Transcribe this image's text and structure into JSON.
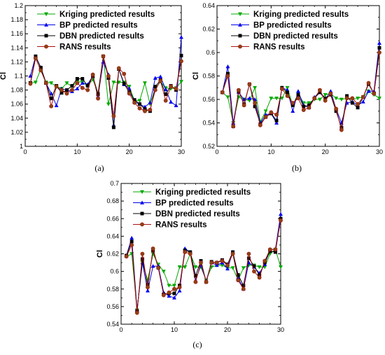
{
  "figure": {
    "colors": {
      "kriging": "#00aa00",
      "bp": "#0000ee",
      "dbn": "#000000",
      "rans": "#aa1111",
      "rans_marker_fill": "#8b4513"
    }
  },
  "chart_data": [
    {
      "type": "line",
      "panel": "(a)",
      "ylabel": "Cl",
      "xlabel": "",
      "xlim": [
        0,
        30
      ],
      "ylim": [
        1.0,
        1.2
      ],
      "xticks": [
        0,
        10,
        20,
        30
      ],
      "yticks": [
        1.0,
        1.02,
        1.04,
        1.06,
        1.08,
        1.1,
        1.12,
        1.14,
        1.16,
        1.18,
        1.2
      ],
      "ytick_labels": [
        "1",
        "1.02",
        "1.04",
        "1.06",
        "1.08",
        "1.1",
        "1.12",
        "1.14",
        "1.16",
        "1.18",
        "1.2"
      ],
      "legend_position": "top-right",
      "x": [
        1,
        2,
        3,
        4,
        5,
        6,
        7,
        8,
        9,
        10,
        11,
        12,
        13,
        14,
        15,
        16,
        17,
        18,
        19,
        20,
        21,
        22,
        23,
        24,
        25,
        26,
        27,
        28,
        29,
        30
      ],
      "series": [
        {
          "name": "Kriging predicted results",
          "values": [
            1.09,
            1.091,
            1.11,
            1.091,
            1.09,
            1.085,
            1.082,
            1.09,
            1.085,
            1.092,
            1.091,
            1.086,
            1.095,
            1.075,
            1.128,
            1.06,
            1.091,
            1.091,
            1.091,
            1.085,
            1.065,
            1.065,
            1.09,
            1.06,
            1.082,
            1.092,
            1.083,
            1.082,
            1.083,
            1.092
          ]
        },
        {
          "name": "BP predicted results",
          "values": [
            1.1,
            1.128,
            1.112,
            1.09,
            1.075,
            1.058,
            1.082,
            1.08,
            1.078,
            1.082,
            1.09,
            1.088,
            1.1,
            1.071,
            1.12,
            1.102,
            1.03,
            1.11,
            1.088,
            1.082,
            1.063,
            1.06,
            1.056,
            1.062,
            1.097,
            1.099,
            1.081,
            1.063,
            1.058,
            1.155
          ]
        },
        {
          "name": "DBN predicted results",
          "values": [
            1.09,
            1.128,
            1.112,
            1.09,
            1.068,
            1.086,
            1.076,
            1.08,
            1.086,
            1.096,
            1.096,
            1.086,
            1.1,
            1.074,
            1.128,
            1.097,
            1.027,
            1.11,
            1.089,
            1.077,
            1.066,
            1.06,
            1.053,
            1.05,
            1.085,
            1.094,
            1.074,
            1.086,
            1.08,
            1.129
          ]
        },
        {
          "name": "RANS results",
          "values": [
            1.089,
            1.125,
            1.108,
            1.09,
            1.057,
            1.085,
            1.08,
            1.075,
            1.08,
            1.09,
            1.083,
            1.08,
            1.102,
            1.068,
            1.128,
            1.1,
            1.043,
            1.111,
            1.103,
            1.075,
            1.062,
            1.054,
            1.05,
            1.052,
            1.08,
            1.093,
            1.065,
            1.085,
            1.082,
            1.121
          ]
        }
      ]
    },
    {
      "type": "line",
      "panel": "(b)",
      "ylabel": "Cl",
      "xlabel": "",
      "xlim": [
        0,
        30
      ],
      "ylim": [
        0.52,
        0.64
      ],
      "xticks": [
        0,
        10,
        20,
        30
      ],
      "yticks": [
        0.52,
        0.54,
        0.56,
        0.58,
        0.6,
        0.62,
        0.64
      ],
      "ytick_labels": [
        "0.52",
        "0.54",
        "0.56",
        "0.58",
        "0.6",
        "0.62",
        "0.64"
      ],
      "legend_position": "top-right",
      "x": [
        1,
        2,
        3,
        4,
        5,
        6,
        7,
        8,
        9,
        10,
        11,
        12,
        13,
        14,
        15,
        16,
        17,
        18,
        19,
        20,
        21,
        22,
        23,
        24,
        25,
        26,
        27,
        28,
        29,
        30
      ],
      "series": [
        {
          "name": "Kriging predicted results",
          "values": [
            0.566,
            0.562,
            0.54,
            0.562,
            0.56,
            0.559,
            0.57,
            0.541,
            0.55,
            0.561,
            0.561,
            0.561,
            0.57,
            0.555,
            0.565,
            0.557,
            0.557,
            0.56,
            0.56,
            0.564,
            0.565,
            0.561,
            0.56,
            0.561,
            0.56,
            0.561,
            0.562,
            0.567,
            0.564,
            0.561
          ]
        },
        {
          "name": "BP predicted results",
          "values": [
            0.566,
            0.588,
            0.54,
            0.566,
            0.56,
            0.561,
            0.56,
            0.54,
            0.547,
            0.548,
            0.54,
            0.57,
            0.568,
            0.55,
            0.567,
            0.555,
            0.553,
            0.562,
            0.566,
            0.56,
            0.567,
            0.552,
            0.54,
            0.557,
            0.558,
            0.555,
            0.558,
            0.567,
            0.567,
            0.608
          ]
        },
        {
          "name": "DBN predicted results",
          "values": [
            0.566,
            0.582,
            0.537,
            0.567,
            0.556,
            0.573,
            0.554,
            0.539,
            0.545,
            0.548,
            0.542,
            0.57,
            0.566,
            0.555,
            0.564,
            0.554,
            0.555,
            0.561,
            0.566,
            0.561,
            0.564,
            0.55,
            0.536,
            0.563,
            0.557,
            0.553,
            0.562,
            0.573,
            0.565,
            0.604
          ]
        },
        {
          "name": "RANS results",
          "values": [
            0.566,
            0.58,
            0.537,
            0.568,
            0.555,
            0.573,
            0.557,
            0.538,
            0.545,
            0.549,
            0.547,
            0.569,
            0.563,
            0.557,
            0.561,
            0.551,
            0.553,
            0.561,
            0.568,
            0.559,
            0.565,
            0.552,
            0.534,
            0.561,
            0.561,
            0.556,
            0.562,
            0.574,
            0.565,
            0.6
          ]
        }
      ]
    },
    {
      "type": "line",
      "panel": "(c)",
      "ylabel": "Cl",
      "xlabel": "",
      "xlim": [
        0,
        30
      ],
      "ylim": [
        0.54,
        0.7
      ],
      "xticks": [
        0,
        10,
        20,
        30
      ],
      "yticks": [
        0.54,
        0.56,
        0.58,
        0.6,
        0.62,
        0.64,
        0.66,
        0.68,
        0.7
      ],
      "ytick_labels": [
        "0.54",
        "0.56",
        "0.58",
        "0.6",
        "0.62",
        "0.64",
        "0.66",
        "0.68",
        "0.7"
      ],
      "legend_position": "top-right",
      "x": [
        1,
        2,
        3,
        4,
        5,
        6,
        7,
        8,
        9,
        10,
        11,
        12,
        13,
        14,
        15,
        16,
        17,
        18,
        19,
        20,
        21,
        22,
        23,
        24,
        25,
        26,
        27,
        28,
        29,
        30
      ],
      "series": [
        {
          "name": "Kriging predicted results",
          "values": [
            0.617,
            0.62,
            0.556,
            0.61,
            0.59,
            0.62,
            0.608,
            0.6,
            0.584,
            0.584,
            0.605,
            0.605,
            0.62,
            0.605,
            0.605,
            0.59,
            0.605,
            0.607,
            0.607,
            0.604,
            0.604,
            0.59,
            0.604,
            0.607,
            0.607,
            0.605,
            0.605,
            0.62,
            0.625,
            0.605
          ]
        },
        {
          "name": "BP predicted results",
          "values": [
            0.618,
            0.638,
            0.556,
            0.61,
            0.578,
            0.606,
            0.606,
            0.576,
            0.572,
            0.57,
            0.578,
            0.626,
            0.622,
            0.59,
            0.607,
            0.589,
            0.61,
            0.607,
            0.61,
            0.603,
            0.622,
            0.593,
            0.58,
            0.61,
            0.605,
            0.598,
            0.608,
            0.625,
            0.625,
            0.665
          ]
        },
        {
          "name": "DBN predicted results",
          "values": [
            0.618,
            0.634,
            0.555,
            0.614,
            0.585,
            0.624,
            0.604,
            0.574,
            0.575,
            0.575,
            0.584,
            0.624,
            0.622,
            0.595,
            0.612,
            0.588,
            0.611,
            0.61,
            0.613,
            0.608,
            0.622,
            0.596,
            0.584,
            0.615,
            0.606,
            0.596,
            0.61,
            0.623,
            0.622,
            0.66
          ]
        },
        {
          "name": "RANS results",
          "values": [
            0.617,
            0.63,
            0.553,
            0.62,
            0.582,
            0.626,
            0.604,
            0.573,
            0.576,
            0.58,
            0.582,
            0.622,
            0.62,
            0.588,
            0.61,
            0.588,
            0.61,
            0.61,
            0.612,
            0.607,
            0.62,
            0.59,
            0.58,
            0.62,
            0.6,
            0.593,
            0.612,
            0.625,
            0.625,
            0.658
          ]
        }
      ]
    }
  ]
}
